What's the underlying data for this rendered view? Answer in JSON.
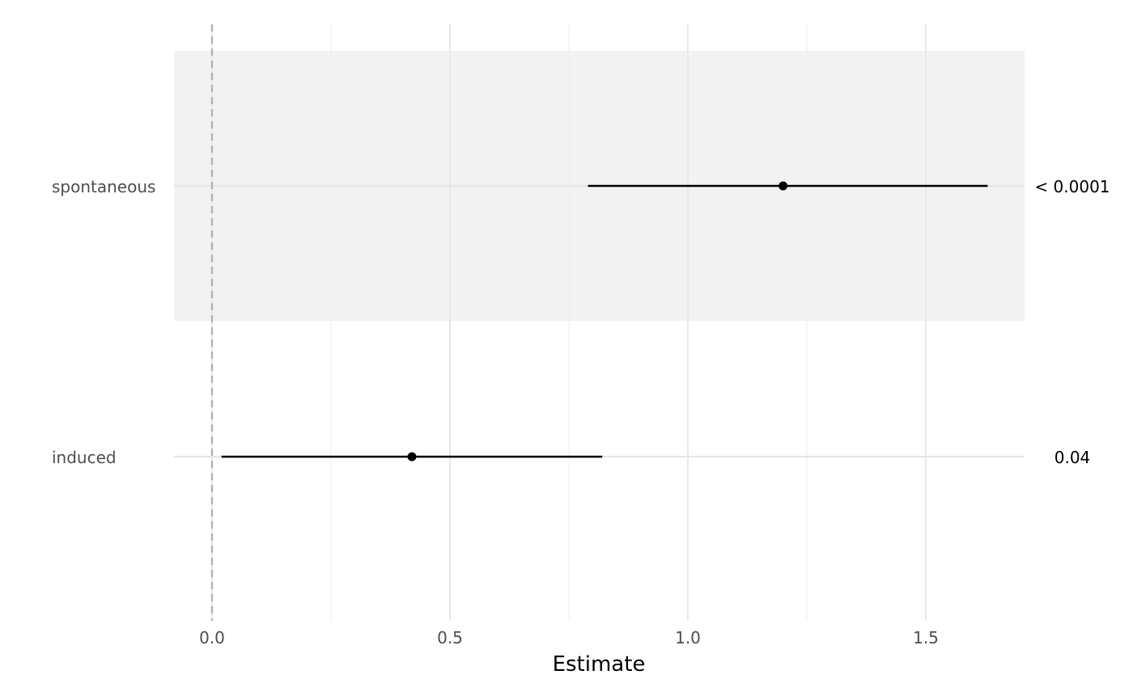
{
  "chart_data": {
    "type": "forest",
    "xlabel": "Estimate",
    "xlim": [
      -0.08,
      1.71
    ],
    "x_ticks": [
      0.0,
      0.5,
      1.0,
      1.5
    ],
    "x_tick_labels": [
      "0.0",
      "0.5",
      "1.0",
      "1.5"
    ],
    "x_minor_ticks": [
      0.25,
      0.75,
      1.25
    ],
    "reference_line": 0,
    "grid": true,
    "rows": [
      {
        "label": "spontaneous",
        "estimate": 1.2,
        "ci_low": 0.79,
        "ci_high": 1.63,
        "p_value": "< 0.0001",
        "shaded": true
      },
      {
        "label": "induced",
        "estimate": 0.42,
        "ci_low": 0.02,
        "ci_high": 0.82,
        "p_value": "0.04",
        "shaded": false
      }
    ],
    "colors": {
      "point": "#000000",
      "interval": "#000000",
      "shade": "#f2f2f2",
      "grid_major": "#e6e6e6",
      "grid_minor": "#f0f0f0",
      "reference": "#b3b3b3"
    }
  }
}
